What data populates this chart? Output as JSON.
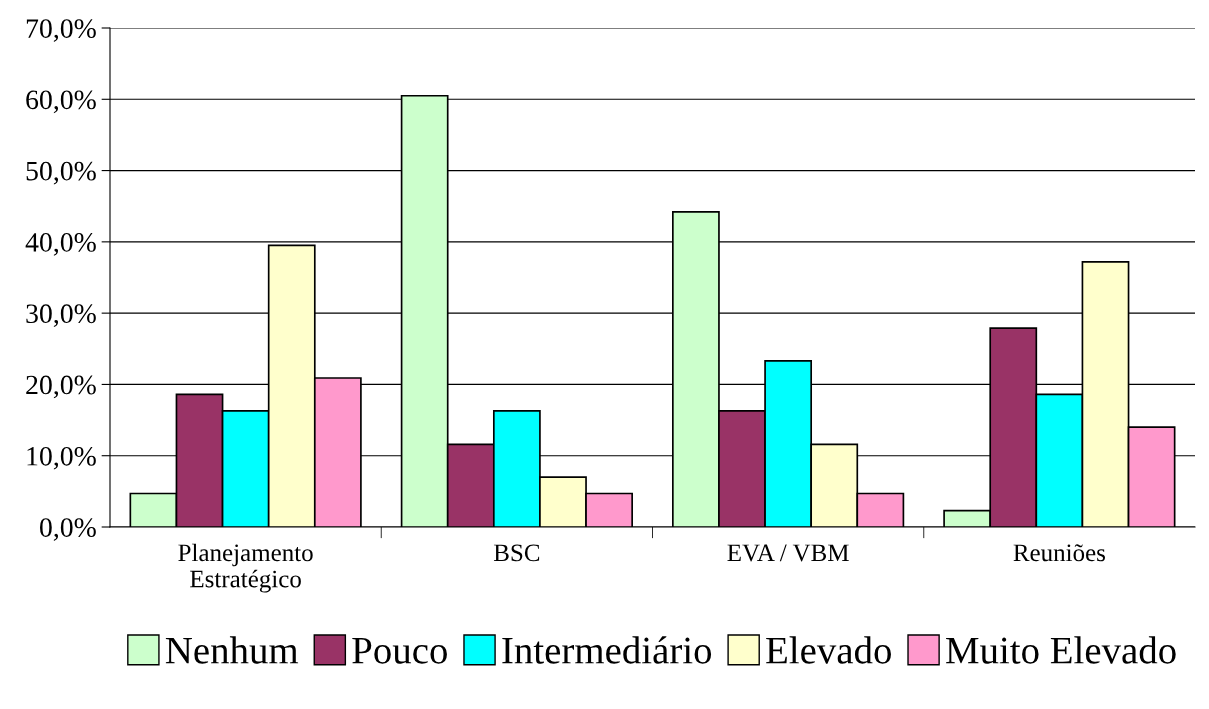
{
  "chart_data": {
    "type": "bar",
    "categories": [
      "Planejamento\nEstratégico",
      "BSC",
      "EVA / VBM",
      "Reuniões"
    ],
    "series": [
      {
        "name": "Nenhum",
        "color": "#ccffcc",
        "values": [
          4.7,
          60.5,
          44.2,
          2.3
        ]
      },
      {
        "name": "Pouco",
        "color": "#993366",
        "values": [
          18.6,
          11.6,
          16.3,
          27.9
        ]
      },
      {
        "name": "Intermediário",
        "color": "#00ffff",
        "values": [
          16.3,
          16.3,
          23.3,
          18.6
        ]
      },
      {
        "name": "Elevado",
        "color": "#ffffcc",
        "values": [
          39.5,
          7.0,
          11.6,
          37.2
        ]
      },
      {
        "name": "Muito Elevado",
        "color": "#ff99cc",
        "values": [
          20.9,
          4.7,
          4.7,
          14.0
        ]
      }
    ],
    "ylim": [
      0,
      70
    ],
    "yticks": [
      {
        "value": 0,
        "label": "0,0%"
      },
      {
        "value": 10,
        "label": "10,0%"
      },
      {
        "value": 20,
        "label": "20,0%"
      },
      {
        "value": 30,
        "label": "30,0%"
      },
      {
        "value": 40,
        "label": "40,0%"
      },
      {
        "value": 50,
        "label": "50,0%"
      },
      {
        "value": 60,
        "label": "60,0%"
      },
      {
        "value": 70,
        "label": "70,0%"
      }
    ],
    "grid": "y",
    "legend": "bottom"
  }
}
